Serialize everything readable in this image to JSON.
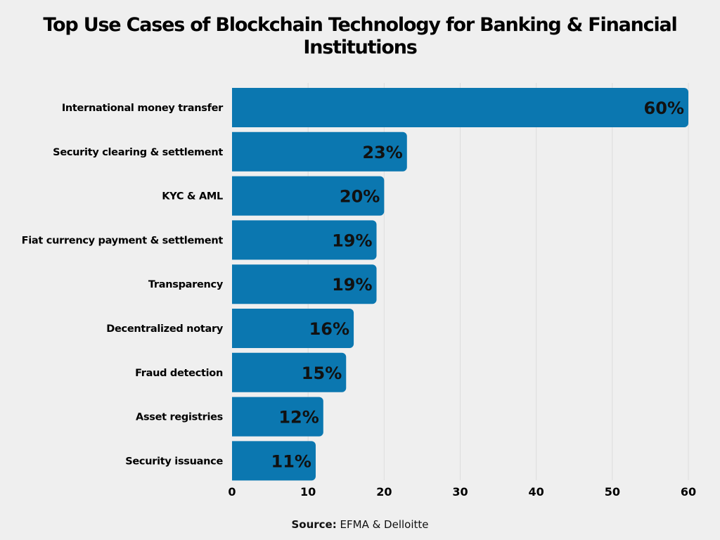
{
  "chart_data": {
    "type": "bar",
    "orientation": "horizontal",
    "title": "Top Use Cases of Blockchain Technology for Banking & Financial Institutions",
    "categories": [
      "International money transfer",
      "Security clearing & settlement",
      "KYC & AML",
      "Fiat currency payment & settlement",
      "Transparency",
      "Decentralized notary",
      "Fraud detection",
      "Asset registries",
      "Security issuance"
    ],
    "values": [
      60,
      23,
      20,
      19,
      19,
      16,
      15,
      12,
      11
    ],
    "data_labels": [
      "60%",
      "23%",
      "20%",
      "19%",
      "19%",
      "16%",
      "15%",
      "12%",
      "11%"
    ],
    "xlim": [
      0,
      60
    ],
    "xticks": [
      0,
      10,
      20,
      30,
      40,
      50,
      60
    ],
    "grid": true,
    "bar_color": "#0b77b0"
  },
  "source": {
    "label": "Source:",
    "text": "EFMA &  Delloitte"
  }
}
